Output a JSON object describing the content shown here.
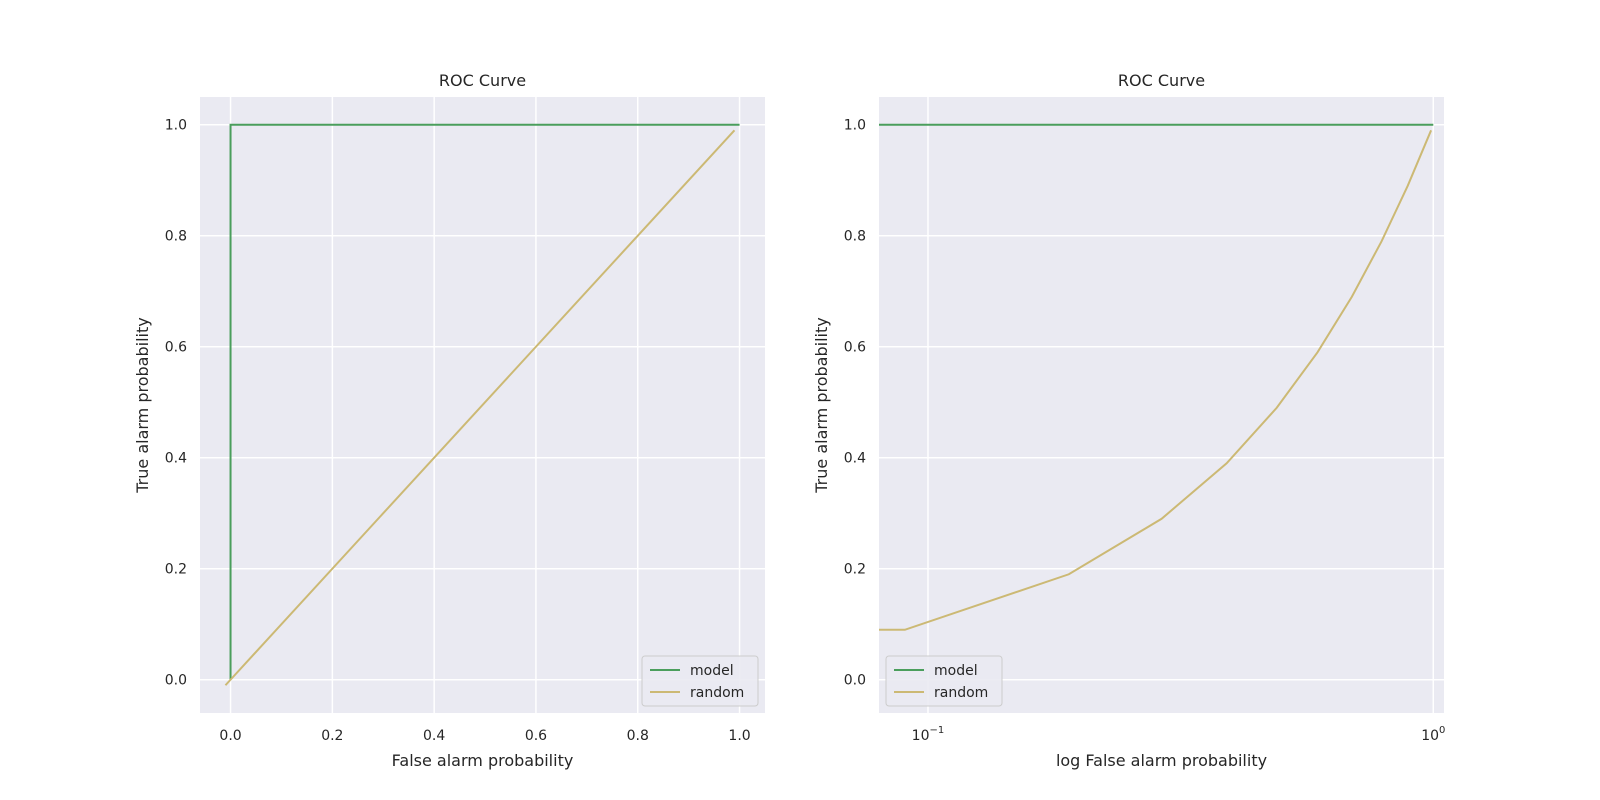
{
  "colors": {
    "plot_bg": "#eaeaf2",
    "grid": "#ffffff",
    "model": "#4a9e5c",
    "random": "#ccb974",
    "text": "#262626"
  },
  "chart_data": [
    {
      "type": "line",
      "title": "ROC Curve",
      "xlabel": "False alarm probability",
      "ylabel": "True alarm probability",
      "xscale": "linear",
      "xlim": [
        -0.06,
        1.05
      ],
      "ylim": [
        -0.06,
        1.05
      ],
      "xticks": [
        0.0,
        0.2,
        0.4,
        0.6,
        0.8,
        1.0
      ],
      "xtick_labels": [
        "0.0",
        "0.2",
        "0.4",
        "0.6",
        "0.8",
        "1.0"
      ],
      "yticks": [
        0.0,
        0.2,
        0.4,
        0.6,
        0.8,
        1.0
      ],
      "ytick_labels": [
        "0.0",
        "0.2",
        "0.4",
        "0.6",
        "0.8",
        "1.0"
      ],
      "grid": true,
      "legend": "lower right",
      "series": [
        {
          "name": "model",
          "color": "model",
          "x": [
            0.0,
            0.0,
            1.0
          ],
          "y": [
            0.0,
            1.0,
            1.0
          ]
        },
        {
          "name": "random",
          "color": "random",
          "x": [
            -0.01,
            0.99
          ],
          "y": [
            -0.01,
            0.99
          ]
        }
      ]
    },
    {
      "type": "line",
      "title": "ROC Curve",
      "xlabel": "log False alarm probability",
      "ylabel": "True alarm probability",
      "xscale": "log",
      "xlim": [
        0.08,
        1.05
      ],
      "ylim": [
        -0.06,
        1.05
      ],
      "xticks": [
        0.1,
        1.0
      ],
      "xtick_labels": [
        {
          "base": "10",
          "exp": "−1"
        },
        {
          "base": "10",
          "exp": "0"
        }
      ],
      "yticks": [
        0.0,
        0.2,
        0.4,
        0.6,
        0.8,
        1.0
      ],
      "ytick_labels": [
        "0.0",
        "0.2",
        "0.4",
        "0.6",
        "0.8",
        "1.0"
      ],
      "grid": true,
      "legend": "lower left",
      "series": [
        {
          "name": "model",
          "color": "model",
          "x": [
            0.08,
            1.0
          ],
          "y": [
            1.0,
            1.0
          ]
        },
        {
          "name": "random",
          "color": "random",
          "x": [
            0.08,
            0.09,
            0.19,
            0.29,
            0.39,
            0.49,
            0.59,
            0.69,
            0.79,
            0.89,
            0.99
          ],
          "y": [
            0.09,
            0.09,
            0.19,
            0.29,
            0.39,
            0.49,
            0.59,
            0.69,
            0.79,
            0.89,
            0.99
          ]
        }
      ]
    }
  ]
}
